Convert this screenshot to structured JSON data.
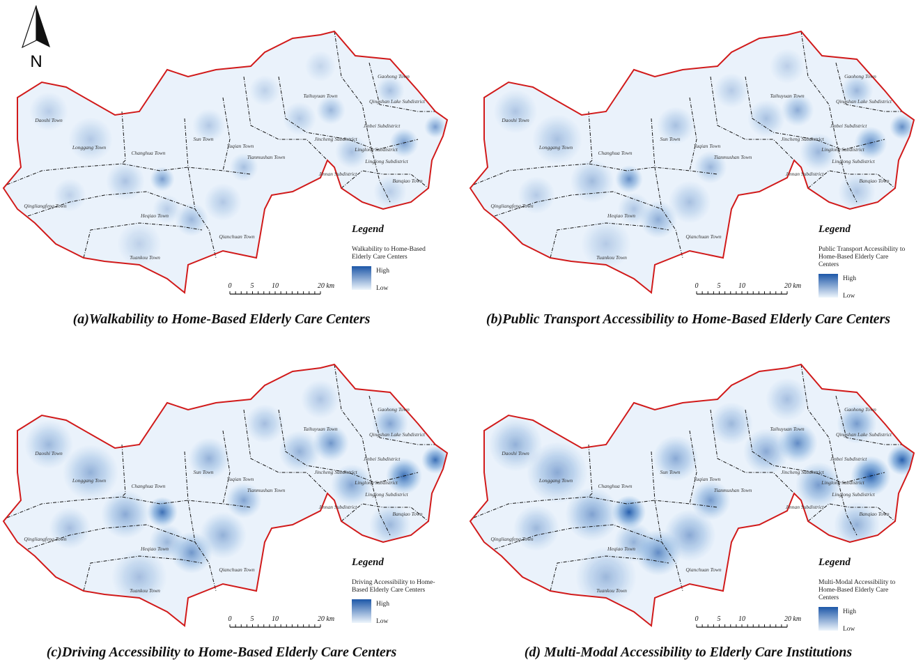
{
  "north_label": "N",
  "towns": [
    "Daoshi Town",
    "Longgang Town",
    "Changhua Town",
    "Sun Town",
    "Yuqian Town",
    "Tianmushan Town",
    "Taihuyuan Town",
    "Gaohong Town",
    "Qingshan Lake Subdistrict",
    "Jinbei Subdistrict",
    "Jincheng Subdistrict",
    "Linglong Subdistrict",
    "Jinnan Subdistrict",
    "Linglong Subdistrict",
    "Banqiao Town",
    "Qingliangfeng Town",
    "Heqiao Town",
    "Qianchuan Town",
    "Tuankou Town"
  ],
  "panels": [
    {
      "caption": "(a)Walkability to Home-Based Elderly Care Centers",
      "legend": {
        "title": "Legend",
        "subtitle": [
          "Walkability to Home-Based",
          "Elderly Care Centers"
        ],
        "high": "High",
        "low": "Low"
      },
      "scale_bar": [
        "0",
        "5",
        "10",
        "20 km"
      ]
    },
    {
      "caption": "(b)Public Transport Accessibility to Home-Based Elderly Care Centers",
      "legend": {
        "title": "Legend",
        "subtitle": [
          "Public Transport Accessibility to",
          "Home-Based Elderly Care",
          "Centers"
        ],
        "high": "High",
        "low": "Low"
      },
      "scale_bar": [
        "0",
        "5",
        "10",
        "20 km"
      ]
    },
    {
      "caption": "(c)Driving Accessibility to Home-Based Elderly Care Centers",
      "legend": {
        "title": "Legend",
        "subtitle": [
          "Driving Accessibility to Home-",
          "Based Elderly Care Centers"
        ],
        "high": "High",
        "low": "Low"
      },
      "scale_bar": [
        "0",
        "5",
        "10",
        "20 km"
      ]
    },
    {
      "caption": "(d) Multi-Modal Accessibility to Elderly Care Institutions",
      "legend": {
        "title": "Legend",
        "subtitle": [
          "Multi-Modal Accessibility to",
          "Home-Based Elderly Care",
          "Centers"
        ],
        "high": "High",
        "low": "Low"
      },
      "scale_bar": [
        "0",
        "5",
        "10",
        "20 km"
      ]
    }
  ]
}
